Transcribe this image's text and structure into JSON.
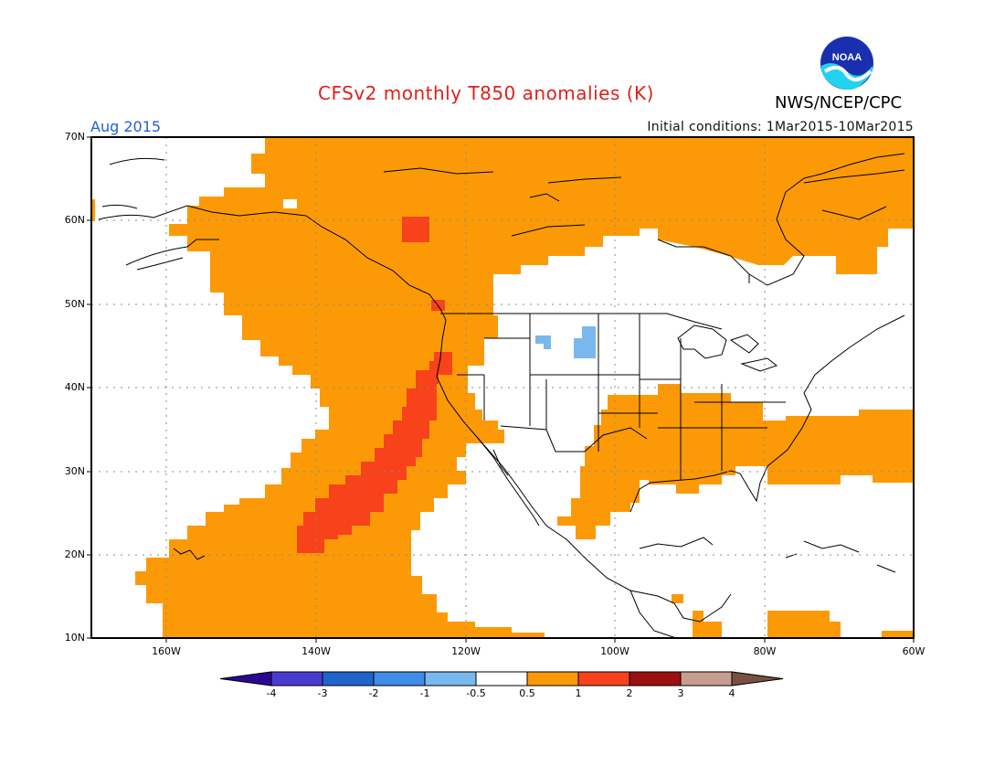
{
  "header": {
    "title": "CFSv2 monthly T850 anomalies (K)",
    "agency": "NWS/NCEP/CPC",
    "period": "Aug 2015",
    "initial_conditions": "Initial conditions: 1Mar2015-10Mar2015",
    "logo_text": "NOAA"
  },
  "axes": {
    "y_ticks": [
      "70N",
      "60N",
      "50N",
      "40N",
      "30N",
      "20N",
      "10N"
    ],
    "x_ticks": [
      "160W",
      "140W",
      "120W",
      "100W",
      "80W",
      "60W"
    ]
  },
  "legend": {
    "tick_labels": [
      "-4",
      "-3",
      "-2",
      "-1",
      "-0.5",
      "0.5",
      "1",
      "2",
      "3",
      "4"
    ],
    "colors": [
      "#2a0896",
      "#4a3bd0",
      "#1e64cc",
      "#3f8de8",
      "#79b8ee",
      "#ffffff",
      "#fb9a06",
      "#f7421c",
      "#9c1010",
      "#c79d8f",
      "#7a5040"
    ]
  },
  "shading_colors": {
    "weak_positive": "#fb9a06",
    "moderate_positive": "#f7421c",
    "strong_positive": "#d21c1c",
    "weak_negative": "#79b8ee"
  }
}
